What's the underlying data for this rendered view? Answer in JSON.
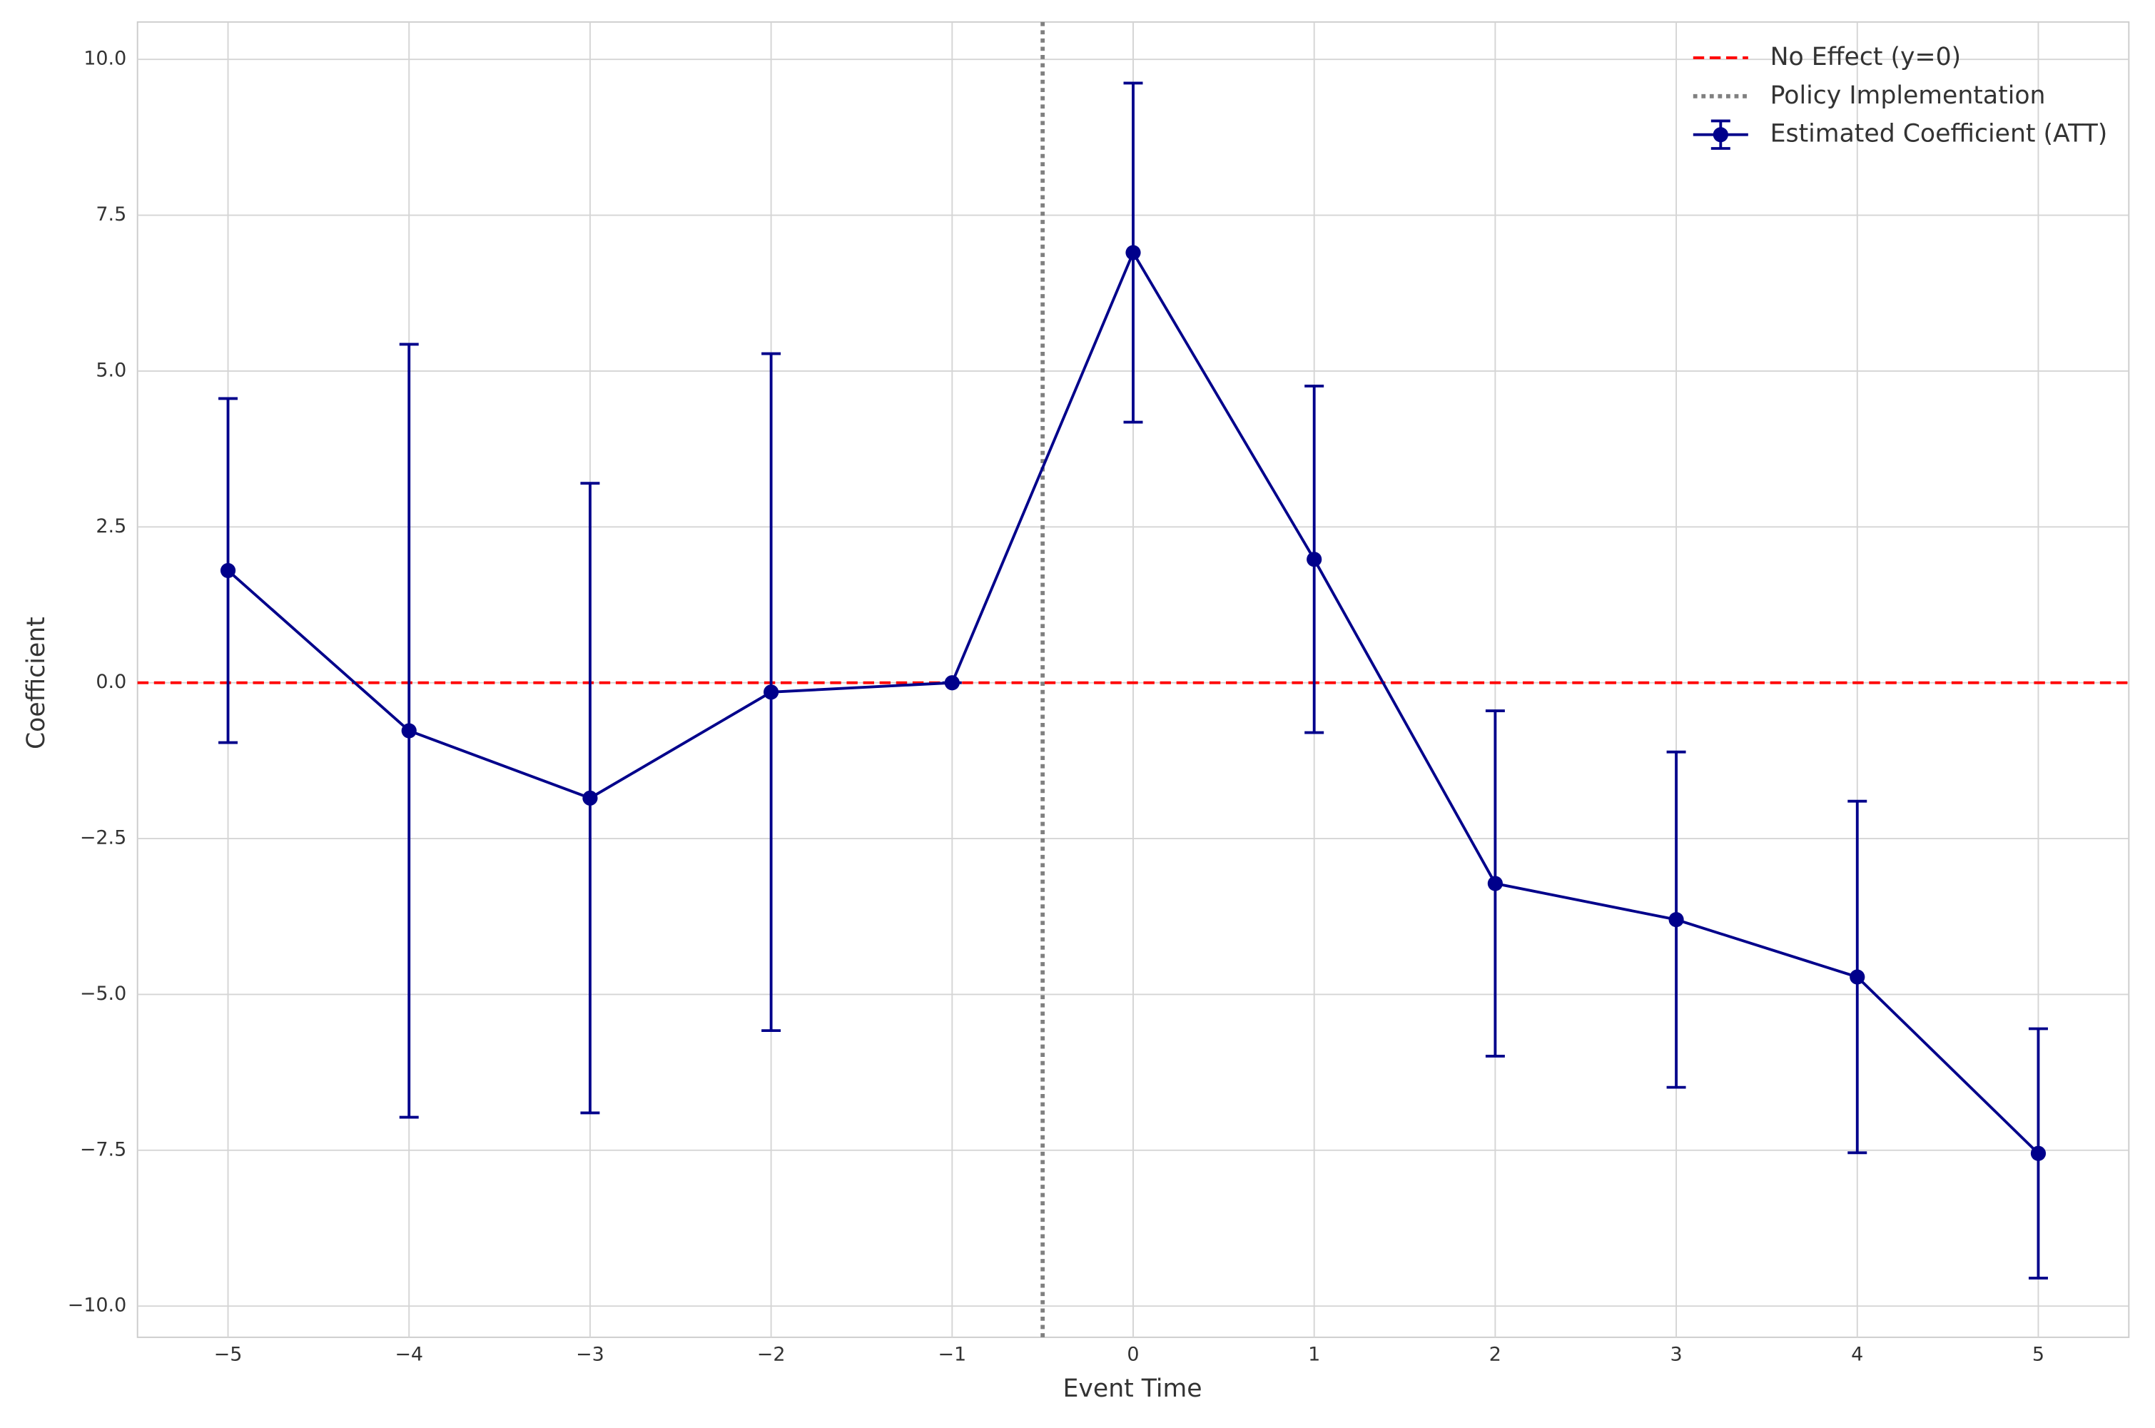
{
  "chart_data": {
    "type": "errorbar-line",
    "xlabel": "Event Time",
    "ylabel": "Coefficient",
    "x": [
      -5,
      -4,
      -3,
      -2,
      -1,
      0,
      1,
      2,
      3,
      4,
      5
    ],
    "series": [
      {
        "name": "Estimated Coefficient (ATT)",
        "color": "#00008b",
        "values": [
          1.8,
          -0.77,
          -1.85,
          -0.15,
          0,
          6.9,
          1.98,
          -3.22,
          -3.8,
          -4.72,
          -7.55
        ],
        "errors": [
          2.76,
          6.2,
          5.05,
          5.43,
          0,
          2.72,
          2.78,
          2.77,
          2.69,
          2.82,
          2.0
        ]
      }
    ],
    "hline": {
      "name": "No Effect (y=0)",
      "value": 0,
      "color": "#ff0000"
    },
    "vline": {
      "name": "Policy Implementation",
      "value": -0.5,
      "color": "#808080"
    },
    "xlim": [
      -5.5,
      5.5
    ],
    "ylim": [
      -10.5,
      10.6
    ],
    "xticks": [
      {
        "value": -5,
        "label": "−5"
      },
      {
        "value": -4,
        "label": "−4"
      },
      {
        "value": -3,
        "label": "−3"
      },
      {
        "value": -2,
        "label": "−2"
      },
      {
        "value": -1,
        "label": "−1"
      },
      0,
      1,
      2,
      3,
      4,
      5
    ],
    "yticks": [
      {
        "value": -10,
        "label": "−10.0"
      },
      {
        "value": -7.5,
        "label": "−7.5"
      },
      {
        "value": -5,
        "label": "−5.0"
      },
      {
        "value": -2.5,
        "label": "−2.5"
      },
      {
        "value": 0,
        "label": "0.0"
      },
      {
        "value": 2.5,
        "label": "2.5"
      },
      {
        "value": 5,
        "label": "5.0"
      },
      {
        "value": 7.5,
        "label": "7.5"
      },
      {
        "value": 10,
        "label": "10.0"
      }
    ],
    "grid": true,
    "legend": "upper right"
  }
}
